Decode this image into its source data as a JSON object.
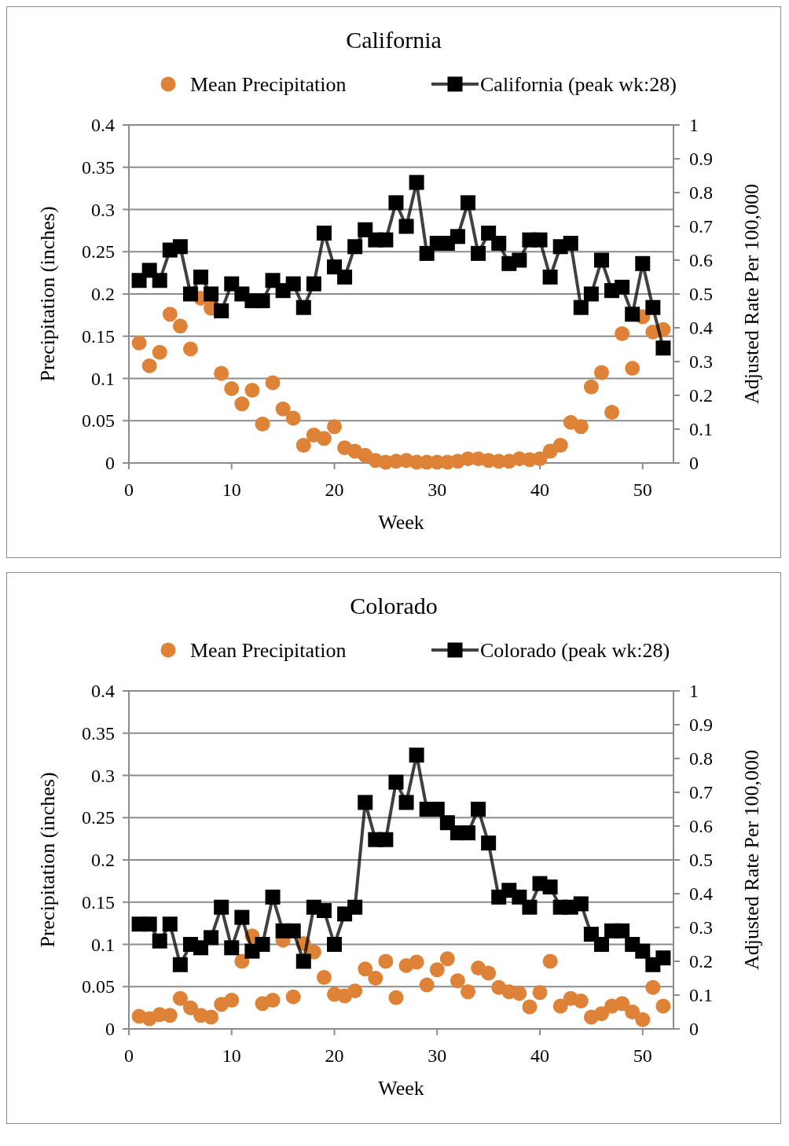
{
  "chart_data": [
    {
      "type": "scatter",
      "title": "California",
      "xlabel": "Week",
      "ylabel": "Precipitation  (inches)",
      "y2label": "Adjusted Rate Per 100,000",
      "legend": "top",
      "grid": "y",
      "xlim": [
        0,
        53
      ],
      "xticks": [
        0,
        10,
        20,
        30,
        40,
        50
      ],
      "ylim": [
        0,
        0.4
      ],
      "yticks": [
        0,
        0.05,
        0.1,
        0.15,
        0.2,
        0.25,
        0.3,
        0.35,
        0.4
      ],
      "y2lim": [
        0,
        1
      ],
      "y2ticks": [
        0,
        0.1,
        0.2,
        0.3,
        0.4,
        0.5,
        0.6,
        0.7,
        0.8,
        0.9,
        1
      ],
      "x": [
        1,
        2,
        3,
        4,
        5,
        6,
        7,
        8,
        9,
        10,
        11,
        12,
        13,
        14,
        15,
        16,
        17,
        18,
        19,
        20,
        21,
        22,
        23,
        24,
        25,
        26,
        27,
        28,
        29,
        30,
        31,
        32,
        33,
        34,
        35,
        36,
        37,
        38,
        39,
        40,
        41,
        42,
        43,
        44,
        45,
        46,
        47,
        48,
        49,
        50,
        51,
        52
      ],
      "series": [
        {
          "name": "Mean Precipitation",
          "marker": "circle",
          "color": "#dd8236",
          "values": [
            0.142,
            0.115,
            0.131,
            0.176,
            0.162,
            0.135,
            0.195,
            0.183,
            0.106,
            0.088,
            0.07,
            0.086,
            0.046,
            0.095,
            0.064,
            0.053,
            0.021,
            0.033,
            0.029,
            0.043,
            0.018,
            0.014,
            0.009,
            0.003,
            0.001,
            0.002,
            0.003,
            0.001,
            0.001,
            0.001,
            0.001,
            0.002,
            0.005,
            0.005,
            0.003,
            0.002,
            0.002,
            0.005,
            0.004,
            0.005,
            0.014,
            0.021,
            0.048,
            0.043,
            0.09,
            0.107,
            0.06,
            0.153,
            0.112,
            0.173,
            0.155,
            0.158
          ]
        },
        {
          "name": "California (peak wk:28)",
          "type": "line",
          "marker": "square",
          "axis": "y2",
          "color": "#000000",
          "values": [
            0.54,
            0.57,
            0.54,
            0.63,
            0.64,
            0.5,
            0.55,
            0.5,
            0.45,
            0.53,
            0.5,
            0.48,
            0.48,
            0.54,
            0.51,
            0.53,
            0.46,
            0.53,
            0.68,
            0.58,
            0.55,
            0.64,
            0.69,
            0.66,
            0.66,
            0.77,
            0.7,
            0.83,
            0.62,
            0.65,
            0.65,
            0.67,
            0.77,
            0.62,
            0.68,
            0.65,
            0.59,
            0.6,
            0.66,
            0.66,
            0.55,
            0.64,
            0.65,
            0.46,
            0.5,
            0.6,
            0.51,
            0.52,
            0.44,
            0.59,
            0.46,
            0.34
          ]
        }
      ]
    },
    {
      "type": "scatter",
      "title": "Colorado",
      "xlabel": "Week",
      "ylabel": "Precipitation  (inches)",
      "y2label": "Adjusted Rate Per 100,000",
      "legend": "top",
      "grid": "y",
      "xlim": [
        0,
        53
      ],
      "xticks": [
        0,
        10,
        20,
        30,
        40,
        50
      ],
      "ylim": [
        0,
        0.4
      ],
      "yticks": [
        0,
        0.05,
        0.1,
        0.15,
        0.2,
        0.25,
        0.3,
        0.35,
        0.4
      ],
      "y2lim": [
        0,
        1
      ],
      "y2ticks": [
        0,
        0.1,
        0.2,
        0.3,
        0.4,
        0.5,
        0.6,
        0.7,
        0.8,
        0.9,
        1
      ],
      "x": [
        1,
        2,
        3,
        4,
        5,
        6,
        7,
        8,
        9,
        10,
        11,
        12,
        13,
        14,
        15,
        16,
        17,
        18,
        19,
        20,
        21,
        22,
        23,
        24,
        25,
        26,
        27,
        28,
        29,
        30,
        31,
        32,
        33,
        34,
        35,
        36,
        37,
        38,
        39,
        40,
        41,
        42,
        43,
        44,
        45,
        46,
        47,
        48,
        49,
        50,
        51,
        52
      ],
      "series": [
        {
          "name": "Mean Precipitation",
          "marker": "circle",
          "color": "#dd8236",
          "values": [
            0.015,
            0.012,
            0.017,
            0.016,
            0.036,
            0.025,
            0.016,
            0.014,
            0.029,
            0.034,
            0.08,
            0.11,
            0.03,
            0.034,
            0.105,
            0.038,
            0.101,
            0.091,
            0.061,
            0.041,
            0.039,
            0.045,
            0.071,
            0.06,
            0.08,
            0.037,
            0.075,
            0.079,
            0.052,
            0.07,
            0.083,
            0.057,
            0.044,
            0.072,
            0.066,
            0.049,
            0.044,
            0.042,
            0.026,
            0.043,
            0.08,
            0.027,
            0.036,
            0.033,
            0.014,
            0.018,
            0.027,
            0.03,
            0.02,
            0.011,
            0.049,
            0.027
          ]
        },
        {
          "name": "Colorado (peak wk:28)",
          "type": "line",
          "marker": "square",
          "axis": "y2",
          "color": "#000000",
          "values": [
            0.31,
            0.31,
            0.26,
            0.31,
            0.19,
            0.25,
            0.24,
            0.27,
            0.36,
            0.24,
            0.33,
            0.23,
            0.25,
            0.39,
            0.29,
            0.29,
            0.2,
            0.36,
            0.35,
            0.25,
            0.34,
            0.36,
            0.67,
            0.56,
            0.56,
            0.73,
            0.67,
            0.81,
            0.65,
            0.65,
            0.61,
            0.58,
            0.58,
            0.65,
            0.55,
            0.39,
            0.41,
            0.39,
            0.36,
            0.43,
            0.42,
            0.36,
            0.36,
            0.37,
            0.28,
            0.25,
            0.29,
            0.29,
            0.25,
            0.23,
            0.19,
            0.21
          ]
        }
      ]
    }
  ]
}
